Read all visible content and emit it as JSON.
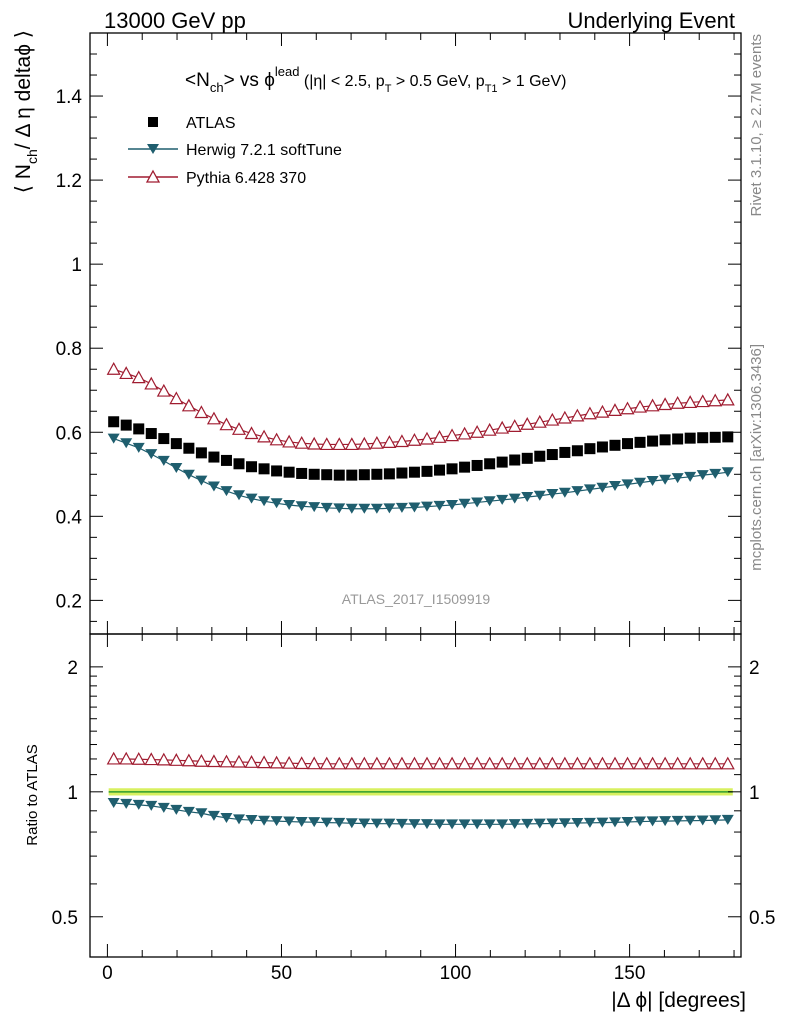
{
  "header": {
    "left": "13000 GeV pp",
    "right": "Underlying Event"
  },
  "side": {
    "rivet": "Rivet 3.1.10, ≥ 2.7M events",
    "mcplots": "mcplots.cern.ch [arXiv:1306.3436]"
  },
  "analysis_id": "ATLAS_2017_I1509919",
  "plot_title": {
    "a": "<N",
    "a_sub": "ch",
    "b": "> vs ϕ",
    "b_sup": "lead",
    "c": " (|η| < 2.5, p",
    "c_sub": "T",
    "d": " > 0.5 GeV, p",
    "d_sub": "T1",
    "e": " > 1 GeV)"
  },
  "ylabel": {
    "a": "⟨ N",
    "a_sub": "ch",
    "b": "/ Δ η deltaϕ ⟩"
  },
  "ratio_ylabel": "Ratio to ATLAS",
  "xlabel": "|Δ ϕ| [degrees]",
  "legend": [
    {
      "label": "ATLAS"
    },
    {
      "label": "Herwig 7.2.1 softTune"
    },
    {
      "label": "Pythia 6.428 370"
    }
  ],
  "colors": {
    "atlas": "#000000",
    "herwig": "#1f5e6e",
    "pythia": "#a01c30",
    "band": "#d8f060",
    "band_line": "#2e9c2e"
  },
  "chart_data": [
    {
      "type": "scatter",
      "title": "<Nch> vs phi lead (|eta| < 2.5, pT > 0.5 GeV, pT1 > 1 GeV)",
      "xlabel": "|Δ ϕ| [degrees]",
      "ylabel": "⟨ Nch / Δ η deltaϕ ⟩",
      "xlim": [
        -5,
        182
      ],
      "ylim": [
        0.12,
        1.55
      ],
      "xticks": [
        0,
        50,
        100,
        150
      ],
      "yticks": [
        0.2,
        0.4,
        0.6,
        0.8,
        1,
        1.2,
        1.4
      ],
      "x": [
        1.8,
        5.4,
        9,
        12.6,
        16.2,
        19.8,
        23.4,
        27,
        30.6,
        34.2,
        37.8,
        41.4,
        45,
        48.6,
        52.2,
        55.8,
        59.4,
        63,
        66.6,
        70.2,
        73.8,
        77.4,
        81,
        84.6,
        88.2,
        91.8,
        95.4,
        99,
        102.6,
        106.2,
        109.8,
        113.4,
        117,
        120.6,
        124.2,
        127.8,
        131.4,
        135,
        138.6,
        142.2,
        145.8,
        149.4,
        153,
        156.6,
        160.2,
        163.8,
        167.4,
        171,
        174.6,
        178.2
      ],
      "series": [
        {
          "name": "ATLAS",
          "marker": "square",
          "values": [
            0.625,
            0.617,
            0.608,
            0.597,
            0.585,
            0.573,
            0.562,
            0.551,
            0.541,
            0.533,
            0.525,
            0.518,
            0.513,
            0.508,
            0.505,
            0.502,
            0.5,
            0.499,
            0.498,
            0.498,
            0.499,
            0.5,
            0.501,
            0.503,
            0.505,
            0.507,
            0.51,
            0.513,
            0.517,
            0.521,
            0.525,
            0.529,
            0.534,
            0.538,
            0.543,
            0.547,
            0.552,
            0.556,
            0.561,
            0.565,
            0.569,
            0.573,
            0.576,
            0.579,
            0.582,
            0.584,
            0.586,
            0.587,
            0.588,
            0.589
          ]
        },
        {
          "name": "Herwig 7.2.1 softTune",
          "marker": "triangle-down",
          "values": [
            0.585,
            0.574,
            0.563,
            0.548,
            0.532,
            0.515,
            0.499,
            0.485,
            0.471,
            0.46,
            0.45,
            0.442,
            0.436,
            0.431,
            0.427,
            0.424,
            0.422,
            0.42,
            0.419,
            0.418,
            0.418,
            0.418,
            0.419,
            0.42,
            0.421,
            0.423,
            0.425,
            0.427,
            0.43,
            0.433,
            0.436,
            0.439,
            0.442,
            0.446,
            0.449,
            0.453,
            0.456,
            0.46,
            0.464,
            0.468,
            0.472,
            0.476,
            0.48,
            0.484,
            0.487,
            0.491,
            0.494,
            0.498,
            0.501,
            0.505
          ]
        },
        {
          "name": "Pythia 6.428 370",
          "marker": "triangle-up-open",
          "values": [
            0.75,
            0.74,
            0.73,
            0.715,
            0.698,
            0.68,
            0.663,
            0.647,
            0.632,
            0.618,
            0.607,
            0.597,
            0.589,
            0.582,
            0.577,
            0.574,
            0.572,
            0.571,
            0.571,
            0.571,
            0.572,
            0.574,
            0.576,
            0.578,
            0.581,
            0.584,
            0.588,
            0.592,
            0.596,
            0.6,
            0.605,
            0.61,
            0.614,
            0.619,
            0.624,
            0.629,
            0.634,
            0.639,
            0.644,
            0.648,
            0.652,
            0.656,
            0.66,
            0.663,
            0.666,
            0.669,
            0.671,
            0.673,
            0.675,
            0.677
          ]
        }
      ]
    },
    {
      "type": "scatter",
      "title": "Ratio to ATLAS",
      "ylabel": "Ratio to ATLAS",
      "xlabel": "|Δ ϕ| [degrees]",
      "xlim": [
        -5,
        182
      ],
      "ylim": [
        0.4,
        2.4
      ],
      "yscale": "log",
      "yticks": [
        0.5,
        1,
        2
      ],
      "x": [
        1.8,
        5.4,
        9,
        12.6,
        16.2,
        19.8,
        23.4,
        27,
        30.6,
        34.2,
        37.8,
        41.4,
        45,
        48.6,
        52.2,
        55.8,
        59.4,
        63,
        66.6,
        70.2,
        73.8,
        77.4,
        81,
        84.6,
        88.2,
        91.8,
        95.4,
        99,
        102.6,
        106.2,
        109.8,
        113.4,
        117,
        120.6,
        124.2,
        127.8,
        131.4,
        135,
        138.6,
        142.2,
        145.8,
        149.4,
        153,
        156.6,
        160.2,
        163.8,
        167.4,
        171,
        174.6,
        178.2
      ],
      "series": [
        {
          "name": "ATLAS",
          "band": 0.02,
          "values": [
            1,
            1,
            1,
            1,
            1,
            1,
            1,
            1,
            1,
            1,
            1,
            1,
            1,
            1,
            1,
            1,
            1,
            1,
            1,
            1,
            1,
            1,
            1,
            1,
            1,
            1,
            1,
            1,
            1,
            1,
            1,
            1,
            1,
            1,
            1,
            1,
            1,
            1,
            1,
            1,
            1,
            1,
            1,
            1,
            1,
            1,
            1,
            1,
            1,
            1
          ]
        },
        {
          "name": "Herwig 7.2.1 softTune",
          "values": [
            0.94,
            0.935,
            0.93,
            0.925,
            0.915,
            0.905,
            0.895,
            0.888,
            0.875,
            0.865,
            0.858,
            0.855,
            0.852,
            0.85,
            0.848,
            0.846,
            0.845,
            0.843,
            0.842,
            0.84,
            0.839,
            0.838,
            0.838,
            0.837,
            0.836,
            0.836,
            0.835,
            0.835,
            0.835,
            0.835,
            0.835,
            0.835,
            0.836,
            0.837,
            0.838,
            0.839,
            0.84,
            0.841,
            0.842,
            0.843,
            0.844,
            0.846,
            0.848,
            0.849,
            0.85,
            0.851,
            0.852,
            0.853,
            0.854,
            0.856
          ]
        },
        {
          "name": "Pythia 6.428 370",
          "values": [
            1.2,
            1.2,
            1.198,
            1.196,
            1.194,
            1.191,
            1.188,
            1.185,
            1.183,
            1.181,
            1.18,
            1.178,
            1.176,
            1.174,
            1.172,
            1.17,
            1.169,
            1.168,
            1.168,
            1.168,
            1.168,
            1.168,
            1.168,
            1.168,
            1.168,
            1.168,
            1.168,
            1.168,
            1.168,
            1.168,
            1.168,
            1.168,
            1.168,
            1.168,
            1.168,
            1.168,
            1.168,
            1.168,
            1.168,
            1.168,
            1.168,
            1.168,
            1.168,
            1.168,
            1.168,
            1.168,
            1.168,
            1.168,
            1.168,
            1.168
          ]
        }
      ]
    }
  ]
}
